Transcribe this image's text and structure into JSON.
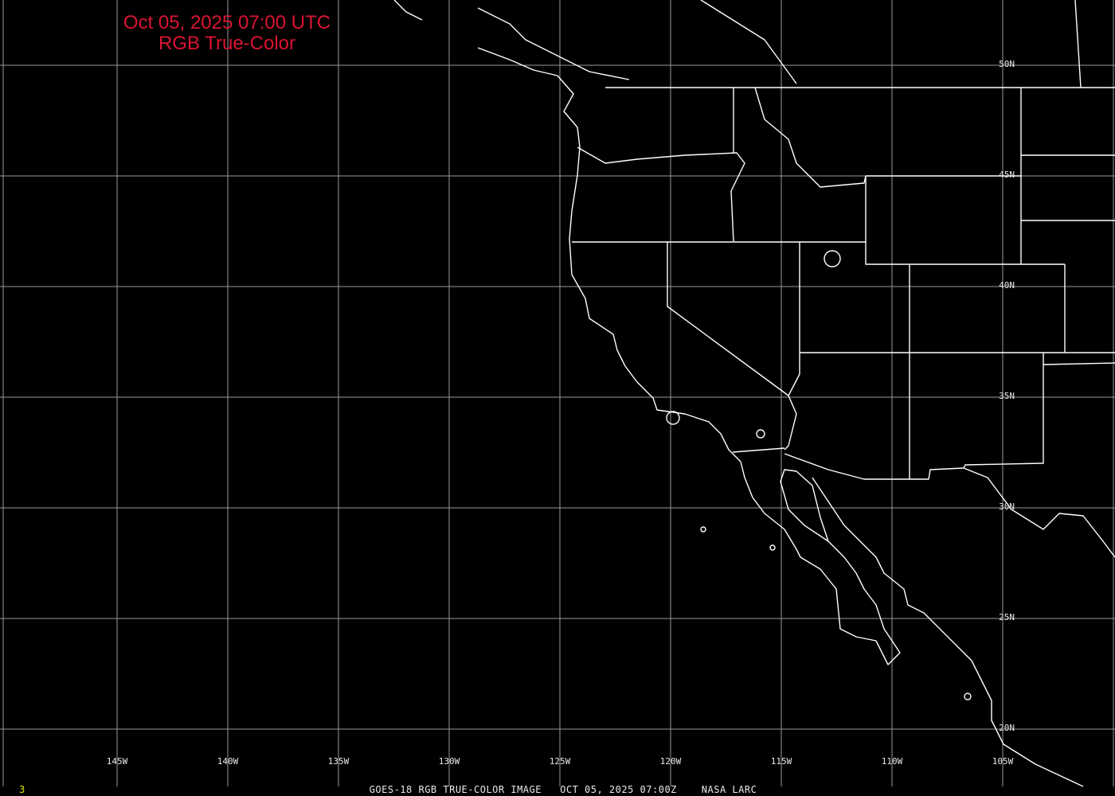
{
  "title": {
    "line1": "Oct 05, 2025 07:00 UTC",
    "line2": "RGB True-Color",
    "color": "#dc1433"
  },
  "footer": {
    "text": "GOES-18 RGB TRUE-COLOR IMAGE   OCT 05, 2025 07:00Z    NASA LARC",
    "frame": "3"
  },
  "grid": {
    "lon_labels": [
      "145W",
      "140W",
      "135W",
      "130W",
      "125W",
      "120W",
      "115W",
      "110W",
      "105W"
    ],
    "lat_labels": [
      "50N",
      "45N",
      "40N",
      "35N",
      "30N",
      "25N",
      "20N"
    ],
    "color": "#9a9a9a"
  },
  "map": {
    "coastline_color": "#ffffff",
    "background": "#000000"
  }
}
